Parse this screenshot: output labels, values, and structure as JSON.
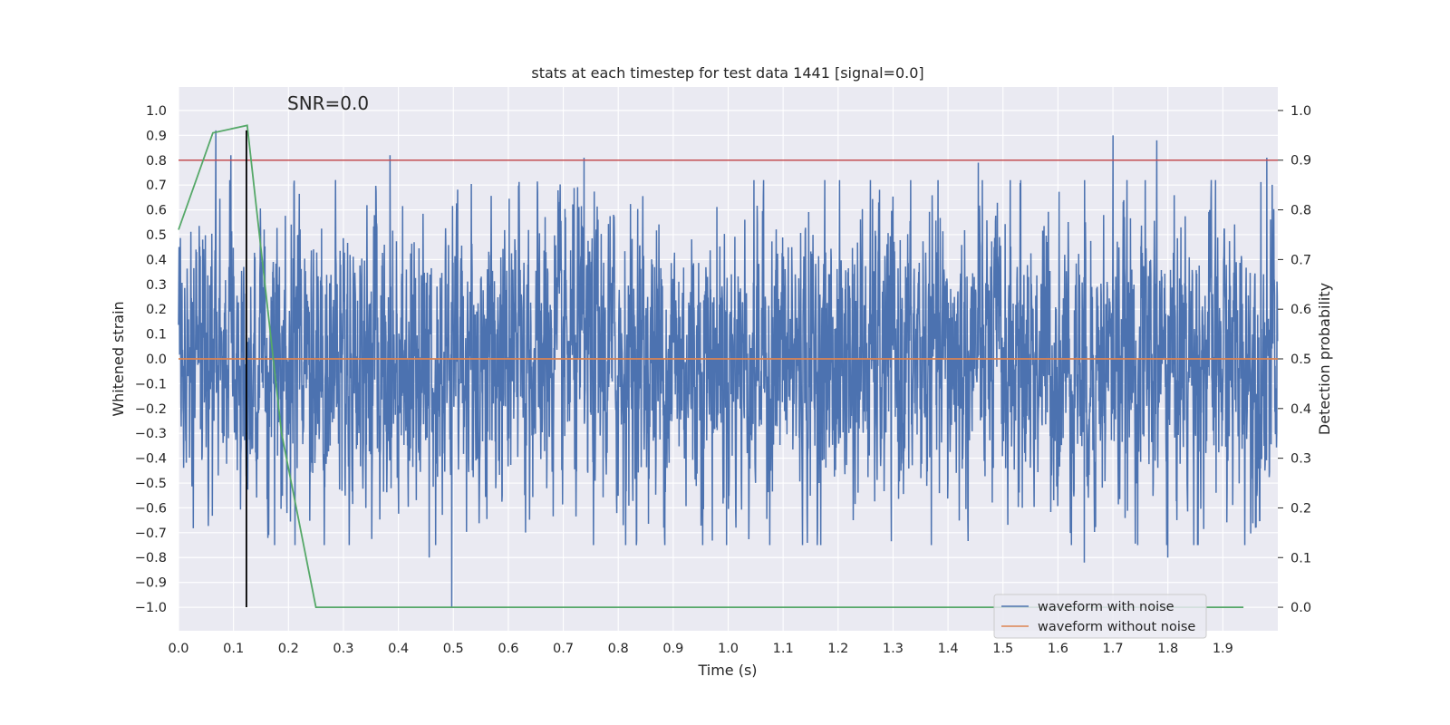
{
  "chart_data": {
    "type": "line",
    "title": "stats at each timestep for test data 1441 [signal=0.0]",
    "xlabel": "Time (s)",
    "ylabel": "Whitened strain",
    "y2label": "Detection probability",
    "xlim": [
      0.0,
      2.0
    ],
    "ylim": [
      -1.0947,
      1.0947
    ],
    "y2lim": [
      -0.0473,
      1.0473
    ],
    "xticks": [
      "0.0",
      "0.1",
      "0.2",
      "0.3",
      "0.4",
      "0.5",
      "0.6",
      "0.7",
      "0.8",
      "0.9",
      "1.0",
      "1.1",
      "1.2",
      "1.3",
      "1.4",
      "1.5",
      "1.6",
      "1.7",
      "1.8",
      "1.9"
    ],
    "yticks": [
      "1.0",
      "0.9",
      "0.8",
      "0.7",
      "0.6",
      "0.5",
      "0.4",
      "0.3",
      "0.2",
      "0.1",
      "0.0",
      "−0.1",
      "−0.2",
      "−0.3",
      "−0.4",
      "−0.5",
      "−0.6",
      "−0.7",
      "−0.8",
      "−0.9",
      "−1.0"
    ],
    "y2ticks": [
      "1.0",
      "0.9",
      "0.8",
      "0.7",
      "0.6",
      "0.5",
      "0.4",
      "0.3",
      "0.2",
      "0.1",
      "0.0"
    ],
    "annotation": "SNR=0.0",
    "grid": true,
    "legend_position": "lower-right",
    "series": [
      {
        "name": "waveform with noise",
        "color": "#4c72b0",
        "axis": "left",
        "sample_rate": 2048,
        "noise_level": 0.26,
        "peaks": [
          [
            0.068,
            0.92
          ],
          [
            0.095,
            0.82
          ],
          [
            0.385,
            0.82
          ],
          [
            0.738,
            0.81
          ],
          [
            1.455,
            0.79
          ],
          [
            1.7,
            0.9
          ],
          [
            1.78,
            0.88
          ],
          [
            1.98,
            0.81
          ],
          [
            0.497,
            -1.0
          ],
          [
            0.456,
            -0.8
          ],
          [
            1.648,
            -0.82
          ],
          [
            1.8,
            -0.8
          ]
        ]
      },
      {
        "name": "waveform without noise",
        "color": "#dd8452",
        "axis": "left",
        "x": [
          0.0,
          2.0
        ],
        "y": [
          0.0,
          0.0
        ]
      },
      {
        "name": "detection probability",
        "color": "#55a868",
        "axis": "right",
        "x": [
          0.0,
          0.0625,
          0.125,
          0.1875,
          0.25,
          1.9375
        ],
        "y": [
          0.76,
          0.955,
          0.97,
          0.35,
          0.0,
          0.0
        ]
      },
      {
        "name": "threshold",
        "color": "#c44e52",
        "axis": "right",
        "x": [
          0.0,
          2.0
        ],
        "y": [
          0.9,
          0.9
        ]
      },
      {
        "name": "marker",
        "color": "#000000",
        "axis": "left",
        "x": [
          0.1235,
          0.1235
        ],
        "y": [
          -1.0,
          0.92
        ]
      }
    ]
  }
}
